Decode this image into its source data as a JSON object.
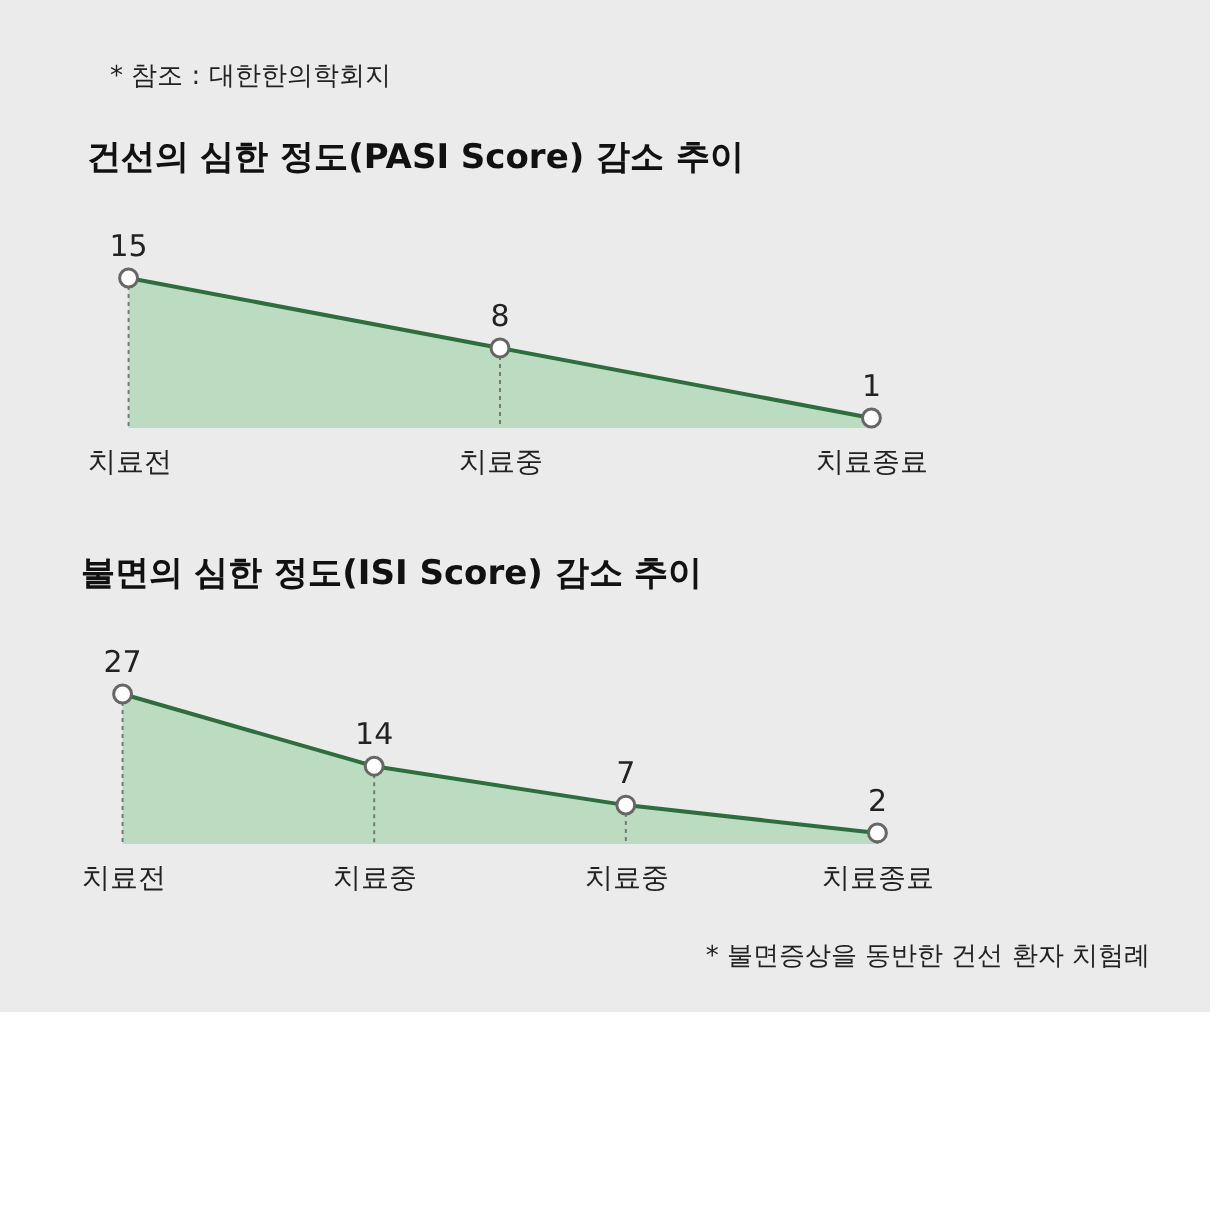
{
  "chart_data": [
    {
      "type": "area",
      "title": "건선의 심한 정도(PASI Score) 감소 추이",
      "annotations": [
        "* 참조 : 대한한의학회지"
      ],
      "categories": [
        "치료전",
        "치료중",
        "치료종료"
      ],
      "series": [
        {
          "color": "#a8d5b1",
          "values": [
            15,
            8,
            1
          ]
        }
      ],
      "data_labels": true,
      "marker": "circle",
      "grid": "x"
    },
    {
      "type": "area",
      "title": "불면의 심한 정도(ISI Score) 감소 추이",
      "annotations": [
        "* 불면증상을 동반한 건선 환자 치험례"
      ],
      "categories": [
        "치료전",
        "치료중",
        "치료중",
        "치료종료"
      ],
      "series": [
        {
          "color": "#a8d5b1",
          "values": [
            27,
            14,
            7,
            2
          ]
        }
      ],
      "data_labels": true,
      "marker": "circle",
      "grid": "x"
    }
  ]
}
